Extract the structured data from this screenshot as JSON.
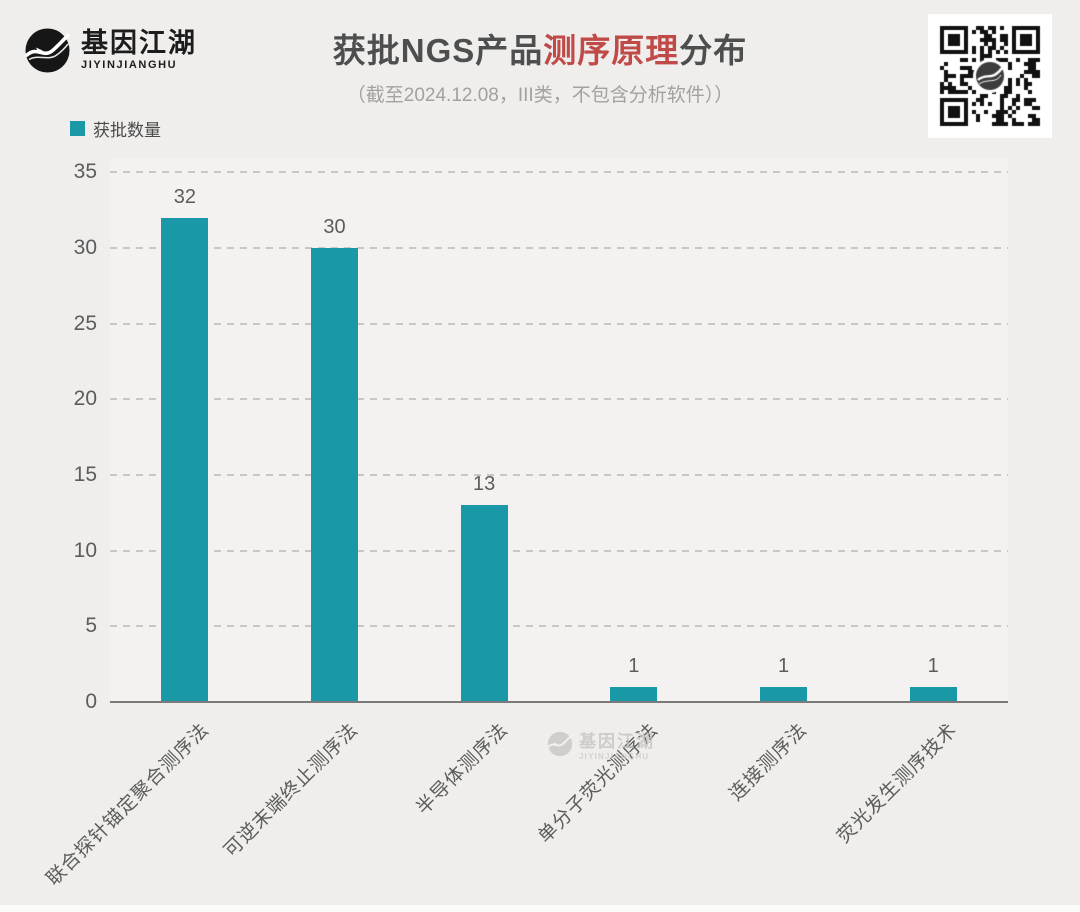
{
  "brand": {
    "name": "基因江湖",
    "latin": "JIYINJIANGHU"
  },
  "header": {
    "title_prefix": "获批NGS产品",
    "title_highlight": "测序原理",
    "title_suffix": "分布",
    "subtitle": "（截至2024.12.08，III类，不包含分析软件））"
  },
  "legend": {
    "label": "获批数量"
  },
  "chart_data": {
    "type": "bar",
    "title": "获批NGS产品测序原理分布",
    "subtitle": "（截至2024.12.08，III类，不包含分析软件））",
    "series_name": "获批数量",
    "categories": [
      "联合探针锚定聚合测序法",
      "可逆末端终止测序法",
      "半导体测序法",
      "单分子荧光测序法",
      "连接测序法",
      "荧光发生测序技术"
    ],
    "values": [
      32,
      30,
      13,
      1,
      1,
      1
    ],
    "xlabel": "",
    "ylabel": "",
    "ylim": [
      0,
      35
    ],
    "yticks": [
      0,
      5,
      10,
      15,
      20,
      25,
      30,
      35
    ],
    "grid": "horizontal-dashed",
    "legend_position": "top-left",
    "bar_color": "#1b98a8",
    "label_color": "#5c5c5c"
  },
  "watermark": {
    "name": "基因江湖",
    "latin": "JIYINJIANGHU"
  },
  "colors": {
    "accent_teal": "#1b98a8",
    "title_red": "#bf4a47",
    "title_gray": "#4e4e4e",
    "background": "#efeeec"
  }
}
